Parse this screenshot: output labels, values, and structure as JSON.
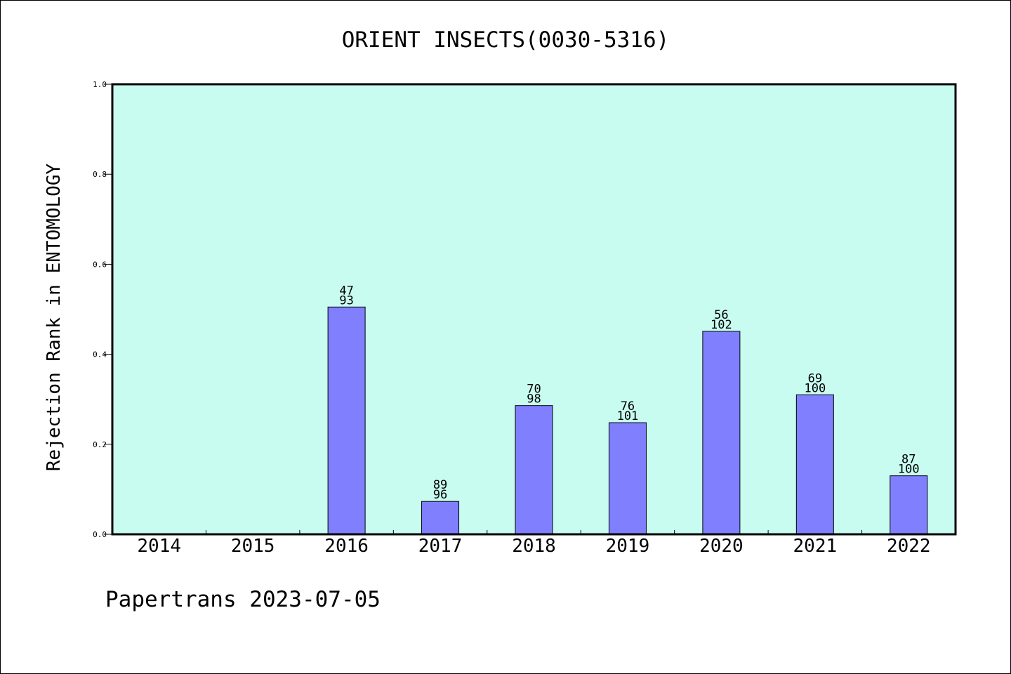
{
  "chart_data": {
    "type": "bar",
    "title": "ORIENT INSECTS(0030-5316)",
    "ylabel": "Rejection Rank in ENTOMOLOGY",
    "xlabel": "",
    "ylim": [
      0,
      1.0
    ],
    "yticks": [
      "0.0",
      "0.2",
      "0.4",
      "0.6",
      "0.8",
      "1.0"
    ],
    "categories": [
      "2014",
      "2015",
      "2016",
      "2017",
      "2018",
      "2019",
      "2020",
      "2021",
      "2022"
    ],
    "values": [
      null,
      null,
      0.505,
      0.073,
      0.286,
      0.248,
      0.451,
      0.31,
      0.13
    ],
    "rank": [
      "",
      "",
      "47",
      "89",
      "70",
      "76",
      "56",
      "69",
      "87"
    ],
    "total": [
      "",
      "",
      "93",
      "96",
      "98",
      "101",
      "102",
      "100",
      "100"
    ],
    "grid": false,
    "bar_color": "#8080ff",
    "plot_background": "#c8fcf0"
  },
  "footer": "Papertrans 2023-07-05"
}
